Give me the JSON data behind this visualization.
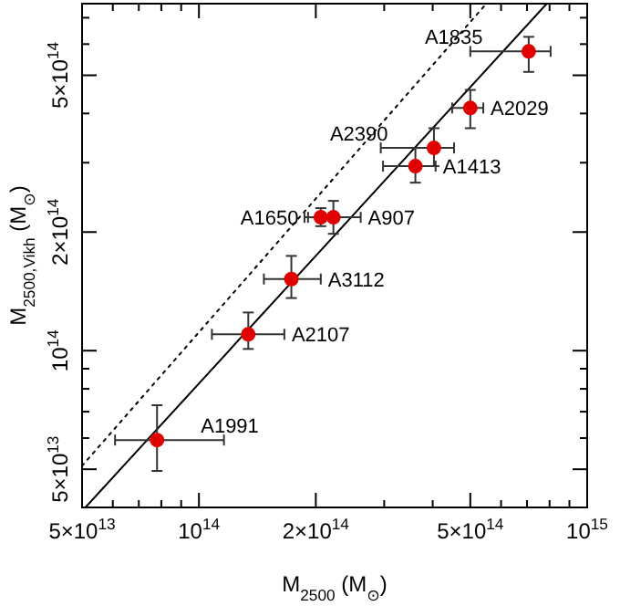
{
  "chart_data": {
    "type": "scatter",
    "xlabel": "M$_{2500}$ (M$_{⊙}$)",
    "ylabel": "M$_{2500,Vikh}$ (M$_{⊙}$)",
    "log": "xy",
    "grid": false,
    "marker": "circle",
    "xlim": [
      50000000000000.0,
      1000000000000000.0
    ],
    "ylim": [
      40000000000000.0,
      760000000000000.0
    ],
    "xticks": [
      {
        "value": 50000000000000.0,
        "label": "5×10$^{13}$"
      },
      {
        "value": 60000000000000.0,
        "label": null
      },
      {
        "value": 70000000000000.0,
        "label": null
      },
      {
        "value": 80000000000000.0,
        "label": null
      },
      {
        "value": 90000000000000.0,
        "label": null
      },
      {
        "value": 100000000000000.0,
        "label": "10$^{14}$"
      },
      {
        "value": 200000000000000.0,
        "label": "2×10$^{14}$"
      },
      {
        "value": 300000000000000.0,
        "label": null
      },
      {
        "value": 400000000000000.0,
        "label": null
      },
      {
        "value": 500000000000000.0,
        "label": "5×10$^{14}$"
      },
      {
        "value": 600000000000000.0,
        "label": null
      },
      {
        "value": 700000000000000.0,
        "label": null
      },
      {
        "value": 800000000000000.0,
        "label": null
      },
      {
        "value": 900000000000000.0,
        "label": null
      },
      {
        "value": 1000000000000000.0,
        "label": "10$^{15}$"
      }
    ],
    "yticks": [
      {
        "value": 50000000000000.0,
        "label": "5×10$^{13}$"
      },
      {
        "value": 60000000000000.0,
        "label": null
      },
      {
        "value": 70000000000000.0,
        "label": null
      },
      {
        "value": 80000000000000.0,
        "label": null
      },
      {
        "value": 90000000000000.0,
        "label": null
      },
      {
        "value": 100000000000000.0,
        "label": "10$^{14}$"
      },
      {
        "value": 200000000000000.0,
        "label": "2×10$^{14}$"
      },
      {
        "value": 300000000000000.0,
        "label": null
      },
      {
        "value": 400000000000000.0,
        "label": null
      },
      {
        "value": 500000000000000.0,
        "label": "5×10$^{14}$"
      },
      {
        "value": 600000000000000.0,
        "label": null
      },
      {
        "value": 700000000000000.0,
        "label": null
      }
    ],
    "series": [
      {
        "type": "line",
        "color": "#000000",
        "line_style": "solid",
        "marker": "none",
        "x": [
          51000000000000.0,
          787000000000000.0
        ],
        "values": [
          40000000000000.0,
          760000000000000.0
        ]
      },
      {
        "type": "line",
        "color": "#000000",
        "line_style": "dotted",
        "marker": "none",
        "x": [
          50000000000000.0,
          550000000000000.0
        ],
        "values": [
          51000000000000.0,
          760000000000000.0
        ]
      },
      {
        "color": "#e00000",
        "x": [
          707000000000000.0,
          500000000000000.0,
          361000000000000.0,
          403000000000000.0,
          206000000000000.0,
          222000000000000.0,
          173000000000000.0,
          134000000000000.0,
          78000000000000.0
        ],
        "values": [
          575000000000000.0,
          413000000000000.0,
          294000000000000.0,
          327000000000000.0,
          218000000000000.0,
          218000000000000.0,
          152000000000000.0,
          110000000000000.0,
          59300000000000.0
        ],
        "errors": [
          [
            510000000000000.0,
            626000000000000.0
          ],
          [
            367000000000000.0,
            459000000000000.0
          ],
          [
            267000000000000.0,
            327000000000000.0
          ],
          [
            294000000000000.0,
            367000000000000.0
          ],
          [
            207000000000000.0,
            230000000000000.0
          ],
          [
            198000000000000.0,
            240000000000000.0
          ],
          [
            136000000000000.0,
            174000000000000.0
          ],
          [
            101000000000000.0,
            125000000000000.0
          ],
          [
            49500000000000.0,
            72700000000000.0
          ]
        ],
        "xerrors": [
          [
            500000000000000.0,
            805000000000000.0
          ],
          [
            449000000000000.0,
            540000000000000.0
          ],
          [
            298000000000000.0,
            407000000000000.0
          ],
          [
            294000000000000.0,
            454000000000000.0
          ],
          [
            191000000000000.0,
            225000000000000.0
          ],
          [
            187000000000000.0,
            261000000000000.0
          ],
          [
            147000000000000.0,
            206000000000000.0
          ],
          [
            108000000000000.0,
            166000000000000.0
          ],
          [
            60800000000000.0,
            116000000000000.0
          ]
        ]
      }
    ],
    "annotations": [
      {
        "text": "A1835",
        "x": 707000000000000.0,
        "y": 575000000000000.0
      },
      {
        "text": "A2029",
        "x": 500000000000000.0,
        "y": 413000000000000.0
      },
      {
        "text": "A1413",
        "x": 361000000000000.0,
        "y": 294000000000000.0
      },
      {
        "text": "A2390",
        "x": 403000000000000.0,
        "y": 327000000000000.0
      },
      {
        "text": "A907",
        "x": 222000000000000.0,
        "y": 218000000000000.0
      },
      {
        "text": "A1650",
        "x": 206000000000000.0,
        "y": 218000000000000.0
      },
      {
        "text": "A3112",
        "x": 173000000000000.0,
        "y": 152000000000000.0
      },
      {
        "text": "A2107",
        "x": 134000000000000.0,
        "y": 110000000000000.0
      },
      {
        "text": "A1991",
        "x": 78000000000000.0,
        "y": 59300000000000.0
      }
    ]
  }
}
